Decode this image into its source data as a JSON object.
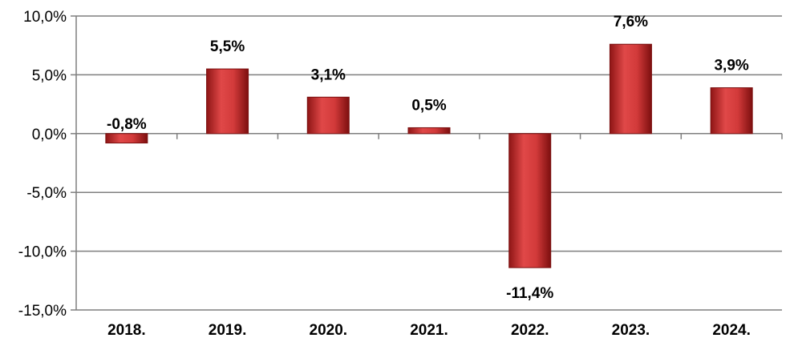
{
  "chart_data": {
    "type": "bar",
    "categories": [
      "2018.",
      "2019.",
      "2020.",
      "2021.",
      "2022.",
      "2023.",
      "2024."
    ],
    "values": [
      -0.8,
      5.5,
      3.1,
      0.5,
      -11.4,
      7.6,
      3.9
    ],
    "value_labels": [
      "-0,8%",
      "5,5%",
      "3,1%",
      "0,5%",
      "-11,4%",
      "7,6%",
      "3,9%"
    ],
    "yticks": [
      10,
      5,
      0,
      -5,
      -10,
      -15
    ],
    "ytick_labels": [
      "10,0%",
      "5,0%",
      "0,0%",
      "-5,0%",
      "-10,0%",
      "-15,0%"
    ],
    "ylim": [
      -15,
      10
    ],
    "title": "",
    "xlabel": "",
    "ylabel": "",
    "grid": true,
    "colors": {
      "bar": "#c0392b",
      "bar_dark": "#7b1010",
      "bar_light": "#e05050",
      "grid": "#7f7f7f"
    }
  }
}
